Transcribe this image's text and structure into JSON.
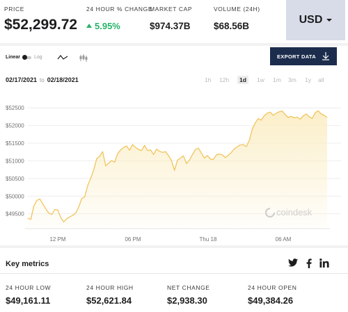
{
  "stats": {
    "price": {
      "label": "PRICE",
      "value": "$52,299.72"
    },
    "change": {
      "label": "24 HOUR % CHANGE",
      "value": "5.95%"
    },
    "market_cap": {
      "label": "MARKET CAP",
      "value": "$974.37B"
    },
    "volume": {
      "label": "VOLUME (24H)",
      "value": "$68.56B"
    },
    "currency": "USD"
  },
  "chart_controls": {
    "scale_linear": "Linear",
    "scale_log": "Log",
    "export_label": "EXPORT DATA",
    "date_from": "02/17/2021",
    "date_sep": "to",
    "date_to": "02/18/2021",
    "timeframes": [
      "1h",
      "12h",
      "1d",
      "1w",
      "1m",
      "3m",
      "1y",
      "all"
    ],
    "active_timeframe": "1d"
  },
  "watermark": "coindesk",
  "colors": {
    "line": "#f1c45c",
    "fill": "#fbeec6",
    "accent": "#1c2c4c",
    "positive": "#27b36a"
  },
  "chart_data": {
    "type": "area",
    "title": "",
    "xlabel": "",
    "ylabel": "",
    "x_ticks": [
      "12 PM",
      "06 PM",
      "Thu 18",
      "06 AM"
    ],
    "y_ticks": [
      "$49500",
      "$50000",
      "$50500",
      "$51000",
      "$51500",
      "$52000",
      "$52500"
    ],
    "ylim": [
      49100,
      52800
    ],
    "grid": true,
    "series": [
      {
        "values": [
          49380,
          49340,
          49720,
          49880,
          49920,
          49780,
          49640,
          49520,
          49480,
          49620,
          49610,
          49390,
          49270,
          49360,
          49410,
          49460,
          49520,
          49690,
          49930,
          49980,
          50300,
          50510,
          50740,
          51060,
          51130,
          51260,
          50860,
          50930,
          51010,
          50960,
          51200,
          51310,
          51380,
          51420,
          51300,
          51460,
          51380,
          51320,
          51290,
          51440,
          51290,
          51310,
          51180,
          51330,
          51270,
          51240,
          51260,
          51150,
          51010,
          50730,
          51020,
          51080,
          51140,
          50920,
          51020,
          51180,
          51320,
          51360,
          51220,
          51080,
          51150,
          51050,
          51040,
          51170,
          51190,
          51170,
          51090,
          51160,
          51240,
          51340,
          51400,
          51450,
          51460,
          51400,
          51580,
          51900,
          52080,
          52200,
          52150,
          52280,
          52350,
          52380,
          52290,
          52350,
          52390,
          52410,
          52310,
          52230,
          52260,
          52220,
          52240,
          52180,
          52270,
          52330,
          52250,
          52200,
          52360,
          52420,
          52330,
          52290,
          52230
        ]
      }
    ]
  },
  "key_metrics": {
    "title": "Key metrics",
    "items": [
      {
        "label": "24 HOUR LOW",
        "value": "$49,161.11"
      },
      {
        "label": "24 HOUR HIGH",
        "value": "$52,621.84"
      },
      {
        "label": "NET CHANGE",
        "value": "$2,938.30"
      },
      {
        "label": "24 HOUR OPEN",
        "value": "$49,384.26"
      }
    ],
    "social": [
      "twitter-icon",
      "facebook-icon",
      "linkedin-icon"
    ]
  }
}
